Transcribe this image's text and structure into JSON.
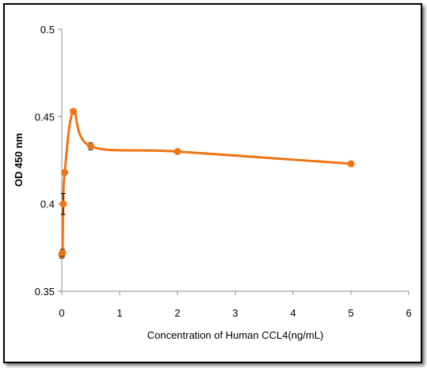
{
  "chart_data": {
    "type": "line",
    "xlabel": "Concentration of Human CCL4(ng/mL)",
    "ylabel": "OD 450 nm",
    "xlim": [
      0,
      6
    ],
    "ylim": [
      0.35,
      0.5
    ],
    "x_ticks": [
      "0",
      "1",
      "2",
      "3",
      "4",
      "5",
      "6"
    ],
    "y_ticks": [
      "0.35",
      "0.4",
      "0.45",
      "0.5"
    ],
    "grid": false,
    "series": [
      {
        "color": "#F07414",
        "smooth": true,
        "points": [
          {
            "x": 0,
            "y": 0.371,
            "err": 0.002
          },
          {
            "x": 0.0125,
            "y": 0.372,
            "err": 0.002
          },
          {
            "x": 0.025,
            "y": 0.4,
            "err": 0.006
          },
          {
            "x": 0.05,
            "y": 0.418,
            "err": 0.001
          },
          {
            "x": 0.2,
            "y": 0.453,
            "err": 0.001
          },
          {
            "x": 0.5,
            "y": 0.433,
            "err": 0.002
          },
          {
            "x": 2,
            "y": 0.43,
            "err": 0.001
          },
          {
            "x": 5,
            "y": 0.423,
            "err": 0.001
          }
        ]
      }
    ]
  }
}
